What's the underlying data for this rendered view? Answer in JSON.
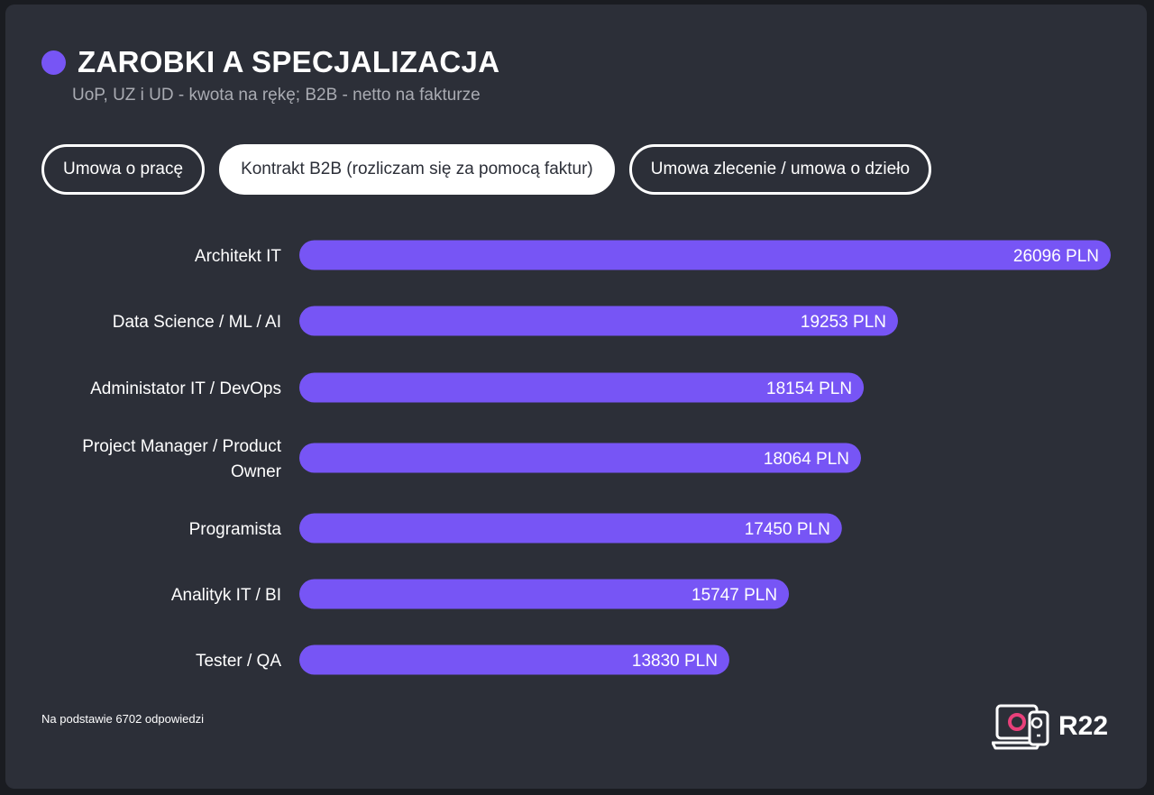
{
  "header": {
    "title": "ZAROBKI A SPECJALIZACJA",
    "subtitle": "UoP, UZ i UD - kwota na rękę; B2B - netto na fakturze"
  },
  "tabs": [
    {
      "label": "Umowa o pracę",
      "active": false
    },
    {
      "label": "Kontrakt B2B (rozliczam się za pomocą faktur)",
      "active": true
    },
    {
      "label": "Umowa zlecenie / umowa o dzieło",
      "active": false
    }
  ],
  "chart_data": {
    "type": "bar",
    "orientation": "horizontal",
    "categories": [
      "Architekt IT",
      "Data Science / ML / AI",
      "Administator IT / DevOps",
      "Project Manager / Product Owner",
      "Programista",
      "Analityk IT / BI",
      "Tester / QA"
    ],
    "values": [
      26096,
      19253,
      18154,
      18064,
      17450,
      15747,
      13830
    ],
    "value_labels": [
      "26096 PLN",
      "19253 PLN",
      "18154 PLN",
      "18064 PLN",
      "17450 PLN",
      "15747 PLN",
      "13830 PLN"
    ],
    "unit": "PLN",
    "bar_color": "#7755f5"
  },
  "footer": {
    "note": "Na podstawie 6702 odpowiedzi",
    "logo_text": "R22"
  },
  "colors": {
    "background": "#2c2f38",
    "accent": "#7755f5",
    "text": "#ffffff",
    "muted": "#a9abb2"
  }
}
